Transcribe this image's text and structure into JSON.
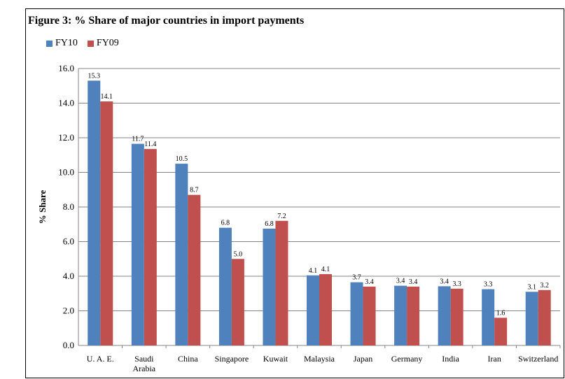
{
  "chart_data": {
    "type": "bar",
    "title": "Figure 3: % Share of major countries in import payments",
    "ylabel": "% Share",
    "xlabel": "",
    "ylim": [
      0,
      16
    ],
    "yticks": [
      "0.0",
      "2.0",
      "4.0",
      "6.0",
      "8.0",
      "10.0",
      "12.0",
      "14.0",
      "16.0"
    ],
    "grid": true,
    "legend_position": "top-left",
    "categories": [
      [
        "U. A. E."
      ],
      [
        "Saudi",
        "Arabia"
      ],
      [
        "China"
      ],
      [
        "Singapore"
      ],
      [
        "Kuwait"
      ],
      [
        "Malaysia"
      ],
      [
        "Japan"
      ],
      [
        "Germany"
      ],
      [
        "India"
      ],
      [
        "Iran"
      ],
      [
        "Switzerland"
      ]
    ],
    "series": [
      {
        "name": "FY10",
        "color": "#4F81BD",
        "values": [
          15.3,
          11.65,
          10.5,
          6.8,
          6.75,
          4.05,
          3.65,
          3.45,
          3.42,
          3.25,
          3.1
        ],
        "labels": [
          "15.3",
          "11.7",
          "10.5",
          "6.8",
          "6.8",
          "4.1",
          "3.7",
          "3.4",
          "3.4",
          "3.3",
          "3.1"
        ]
      },
      {
        "name": "FY09",
        "color": "#C0504D",
        "values": [
          14.1,
          11.35,
          8.7,
          5.0,
          7.2,
          4.12,
          3.4,
          3.4,
          3.28,
          1.6,
          3.2
        ],
        "labels": [
          "14.1",
          "11.4",
          "8.7",
          "5.0",
          "7.2",
          "4.1",
          "3.4",
          "3.4",
          "3.3",
          "1.6",
          "3.2"
        ]
      }
    ]
  }
}
